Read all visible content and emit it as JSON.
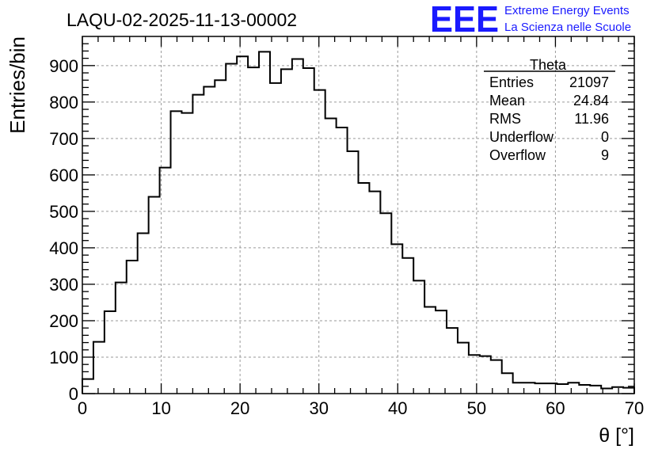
{
  "chart_data": {
    "type": "bar",
    "title": "LAQU-02-2025-11-13-00002",
    "xlabel": "θ [°]",
    "ylabel": "Entries/bin",
    "xlim": [
      0,
      70
    ],
    "ylim": [
      0,
      980
    ],
    "bin_width": 1.4,
    "x_ticks": [
      0,
      10,
      20,
      30,
      40,
      50,
      60,
      70
    ],
    "y_ticks": [
      0,
      100,
      200,
      300,
      400,
      500,
      600,
      700,
      800,
      900
    ],
    "grid": true,
    "values": [
      40,
      142,
      226,
      305,
      365,
      440,
      540,
      620,
      775,
      770,
      820,
      842,
      860,
      905,
      925,
      895,
      938,
      852,
      890,
      918,
      893,
      833,
      755,
      730,
      665,
      578,
      555,
      495,
      410,
      372,
      310,
      238,
      228,
      180,
      140,
      106,
      103,
      92,
      56,
      30,
      30,
      28,
      28,
      26,
      30,
      24,
      22,
      14,
      18,
      16
    ],
    "stats": {
      "title": "Theta",
      "rows": [
        {
          "label": "Entries",
          "value": "21097"
        },
        {
          "label": "Mean",
          "value": "24.84"
        },
        {
          "label": "RMS",
          "value": "11.96"
        },
        {
          "label": "Underflow",
          "value": "0"
        },
        {
          "label": "Overflow",
          "value": "9"
        }
      ]
    },
    "logo": {
      "mark": "EEE",
      "line1": "Extreme Energy Events",
      "line2": "La Scienza nelle Scuole",
      "color": "#1a1aff"
    }
  }
}
